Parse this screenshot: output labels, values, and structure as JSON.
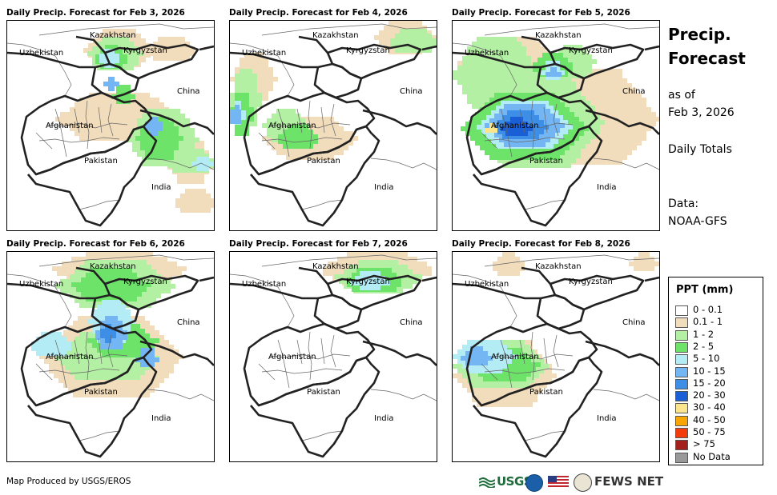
{
  "panels": [
    {
      "title": "Daily Precip. Forecast for Feb 3, 2026",
      "pattern": "p1"
    },
    {
      "title": "Daily Precip. Forecast for Feb 4, 2026",
      "pattern": "p2"
    },
    {
      "title": "Daily Precip. Forecast for Feb 5, 2026",
      "pattern": "p3"
    },
    {
      "title": "Daily Precip. Forecast for Feb 6, 2026",
      "pattern": "p4"
    },
    {
      "title": "Daily Precip. Forecast for Feb 7, 2026",
      "pattern": "p5"
    },
    {
      "title": "Daily Precip. Forecast for Feb 8, 2026",
      "pattern": "p6"
    }
  ],
  "map_labels": {
    "kazakhstan": "Kazakhstan",
    "uzbekistan": "Uzbekistan",
    "kyrgyzstan": "Kyrgyzstan",
    "china": "China",
    "afghanistan": "Afghanistan",
    "pakistan": "Pakistan",
    "india": "India"
  },
  "side": {
    "title_line1": "Precip.",
    "title_line2": "Forecast",
    "asof_line1": "as of",
    "asof_line2": "Feb 3, 2026",
    "totals": "Daily Totals",
    "data_line1": "Data:",
    "data_line2": "NOAA-GFS"
  },
  "legend": {
    "title": "PPT (mm)",
    "items": [
      {
        "label": "0 - 0.1",
        "color": "#ffffff"
      },
      {
        "label": "0.1 - 1",
        "color": "#f1dcbc"
      },
      {
        "label": "1 - 2",
        "color": "#b4f0a4"
      },
      {
        "label": "2 - 5",
        "color": "#6ee36a"
      },
      {
        "label": "5 - 10",
        "color": "#b4ecf6"
      },
      {
        "label": "10 - 15",
        "color": "#74b6f4"
      },
      {
        "label": "15 - 20",
        "color": "#3c8ee6"
      },
      {
        "label": "20 - 30",
        "color": "#1a5fd6"
      },
      {
        "label": "30 - 40",
        "color": "#fbe58c"
      },
      {
        "label": "40 - 50",
        "color": "#f9a600"
      },
      {
        "label": "50 - 75",
        "color": "#f33b0c"
      },
      {
        "label": "> 75",
        "color": "#a4201c"
      },
      {
        "label": "No Data",
        "color": "#999999"
      }
    ]
  },
  "credit": "Map Produced by USGS/EROS",
  "logos": {
    "usgs": "USGS",
    "fews": "FEWS NET"
  },
  "icons": [
    "usgs-logo-icon",
    "noaa-logo-icon",
    "us-flag-icon",
    "usaid-seal-icon"
  ]
}
